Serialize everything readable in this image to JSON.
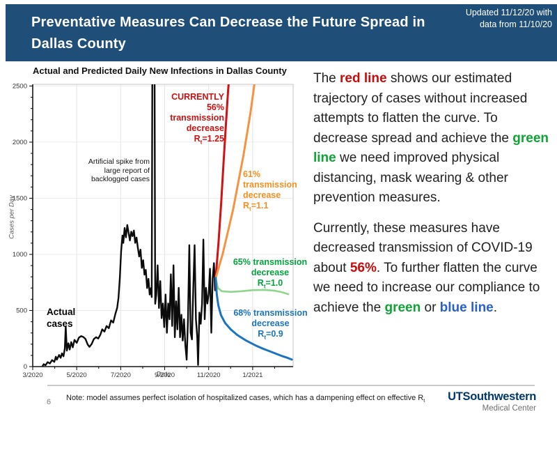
{
  "header": {
    "title": "Preventative Measures Can Decrease the Future Spread in Dallas County",
    "updated_line1": "Updated 11/12/20 with",
    "updated_line2": "data from 11/10/20",
    "bg_color": "#1F4E79"
  },
  "side_text": {
    "paragraph1_runs": [
      {
        "t": "The "
      },
      {
        "t": "red line",
        "c": "red"
      },
      {
        "t": " shows our estimated trajectory of cases without increased attempts to flatten the curve. To decrease spread and achieve the "
      },
      {
        "t": "green line",
        "c": "green"
      },
      {
        "t": " we need improved physical distancing, mask wearing & other prevention measures."
      }
    ],
    "paragraph2_runs": [
      {
        "t": "Currently, these measures have decreased transmission of COVID-19 about "
      },
      {
        "t": "56%",
        "c": "red"
      },
      {
        "t": ". To further flatten the curve we need to increase our compliance to achieve the "
      },
      {
        "t": "green",
        "c": "green"
      },
      {
        "t": " or "
      },
      {
        "t": "blue line",
        "c": "blue"
      },
      {
        "t": "."
      }
    ]
  },
  "footer": {
    "page_number": "6",
    "note_prefix": "Note: model assumes perfect isolation of hospitalized cases, which has a dampening effect on effective R",
    "note_sub": "t",
    "logo_line1": "UTSouthwestern",
    "logo_line2": "Medical Center"
  },
  "chart_data": {
    "type": "line",
    "title": "Actual and Predicted Daily New Infections in Dallas County",
    "xlabel": "Date",
    "ylabel": "Cases per Day",
    "x_unit": "months since 3/2020",
    "xlim": [
      0,
      11.84
    ],
    "ylim": [
      0,
      2515
    ],
    "grid": true,
    "x_ticks": [
      {
        "v": 0,
        "label": "3/2020"
      },
      {
        "v": 2,
        "label": "5/2020"
      },
      {
        "v": 4,
        "label": "7/2020"
      },
      {
        "v": 6,
        "label": "9/2020"
      },
      {
        "v": 8,
        "label": "11/2020"
      },
      {
        "v": 10,
        "label": "1/2021"
      }
    ],
    "y_ticks": [
      0,
      500,
      1000,
      1500,
      2000,
      2500
    ],
    "y_minor_step": 100,
    "x_minor_step": 1,
    "series": [
      {
        "name": "Actual cases",
        "color": "#0b0b0b",
        "width": 2.4,
        "points": [
          [
            0.45,
            5
          ],
          [
            0.5,
            22
          ],
          [
            0.58,
            12
          ],
          [
            0.68,
            40
          ],
          [
            0.78,
            28
          ],
          [
            0.88,
            58
          ],
          [
            0.98,
            42
          ],
          [
            1.05,
            88
          ],
          [
            1.1,
            62
          ],
          [
            1.2,
            104
          ],
          [
            1.27,
            78
          ],
          [
            1.33,
            118
          ],
          [
            1.4,
            92
          ],
          [
            1.46,
            162
          ],
          [
            1.5,
            358
          ],
          [
            1.55,
            142
          ],
          [
            1.62,
            208
          ],
          [
            1.68,
            152
          ],
          [
            1.75,
            218
          ],
          [
            1.82,
            172
          ],
          [
            1.9,
            238
          ],
          [
            2.0,
            212
          ],
          [
            2.1,
            258
          ],
          [
            2.2,
            272
          ],
          [
            2.3,
            264
          ],
          [
            2.4,
            246
          ],
          [
            2.5,
            196
          ],
          [
            2.58,
            176
          ],
          [
            2.68,
            202
          ],
          [
            2.78,
            246
          ],
          [
            2.88,
            262
          ],
          [
            2.98,
            250
          ],
          [
            3.08,
            286
          ],
          [
            3.16,
            332
          ],
          [
            3.26,
            312
          ],
          [
            3.36,
            362
          ],
          [
            3.46,
            342
          ],
          [
            3.56,
            412
          ],
          [
            3.66,
            392
          ],
          [
            3.76,
            472
          ],
          [
            3.84,
            524
          ],
          [
            3.9,
            614
          ],
          [
            3.96,
            788
          ],
          [
            4.02,
            1030
          ],
          [
            4.08,
            1168
          ],
          [
            4.12,
            1102
          ],
          [
            4.18,
            1235
          ],
          [
            4.24,
            1152
          ],
          [
            4.3,
            1262
          ],
          [
            4.36,
            1192
          ],
          [
            4.42,
            1124
          ],
          [
            4.48,
            1202
          ],
          [
            4.54,
            1162
          ],
          [
            4.6,
            1212
          ],
          [
            4.66,
            1102
          ],
          [
            4.72,
            1150
          ],
          [
            4.78,
            1058
          ],
          [
            4.84,
            982
          ],
          [
            4.9,
            1042
          ],
          [
            4.96,
            880
          ],
          [
            5.02,
            948
          ],
          [
            5.08,
            820
          ],
          [
            5.14,
            862
          ],
          [
            5.2,
            700
          ],
          [
            5.26,
            782
          ],
          [
            5.32,
            642
          ],
          [
            5.38,
            700
          ],
          [
            5.41,
            620
          ],
          [
            5.44,
            2650
          ],
          [
            5.54,
            2650
          ],
          [
            5.57,
            560
          ],
          [
            5.62,
            642
          ],
          [
            5.68,
            902
          ],
          [
            5.74,
            522
          ],
          [
            5.8,
            762
          ],
          [
            5.86,
            432
          ],
          [
            5.92,
            562
          ],
          [
            5.98,
            352
          ],
          [
            6.04,
            642
          ],
          [
            6.1,
            302
          ],
          [
            6.16,
            562
          ],
          [
            6.22,
            422
          ],
          [
            6.28,
            822
          ],
          [
            6.34,
            362
          ],
          [
            6.4,
            902
          ],
          [
            6.46,
            262
          ],
          [
            6.52,
            582
          ],
          [
            6.58,
            332
          ],
          [
            6.64,
            702
          ],
          [
            6.7,
            262
          ],
          [
            6.76,
            462
          ],
          [
            6.82,
            232
          ],
          [
            6.88,
            422
          ],
          [
            6.94,
            192
          ],
          [
            7.0,
            62
          ],
          [
            7.06,
            422
          ],
          [
            7.12,
            1082
          ],
          [
            7.18,
            302
          ],
          [
            7.24,
            242
          ],
          [
            7.3,
            702
          ],
          [
            7.36,
            1082
          ],
          [
            7.42,
            422
          ],
          [
            7.48,
            262
          ],
          [
            7.52,
            15
          ],
          [
            7.58,
            482
          ],
          [
            7.64,
            382
          ],
          [
            7.7,
            562
          ],
          [
            7.76,
            1132
          ],
          [
            7.82,
            422
          ],
          [
            7.88,
            702
          ],
          [
            7.94,
            562
          ],
          [
            8.0,
            642
          ],
          [
            8.06,
            872
          ],
          [
            8.12,
            302
          ],
          [
            8.18,
            782
          ],
          [
            8.24,
            922
          ],
          [
            8.29,
            680
          ],
          [
            8.32,
            790
          ]
        ]
      },
      {
        "name": "56% transmission decrease Rt=1.25",
        "color": "#D01215",
        "width": 3,
        "points": [
          [
            8.32,
            790
          ],
          [
            8.45,
            1110
          ],
          [
            8.57,
            1460
          ],
          [
            8.68,
            1830
          ],
          [
            8.78,
            2140
          ],
          [
            8.88,
            2450
          ],
          [
            8.95,
            2620
          ]
        ]
      },
      {
        "name": "61% transmission decrease Rt=1.1",
        "color": "#F79240",
        "width": 3,
        "points": [
          [
            8.32,
            790
          ],
          [
            8.64,
            1005
          ],
          [
            9.11,
            1400
          ],
          [
            9.59,
            1890
          ],
          [
            9.9,
            2260
          ],
          [
            10.14,
            2600
          ]
        ]
      },
      {
        "name": "65% transmission decrease Rt=1.0",
        "color": "#8FD58C",
        "width": 2.6,
        "points": [
          [
            8.32,
            790
          ],
          [
            8.42,
            700
          ],
          [
            8.6,
            672
          ],
          [
            9.0,
            666
          ],
          [
            9.5,
            672
          ],
          [
            10.0,
            681
          ],
          [
            10.5,
            684
          ],
          [
            11.0,
            676
          ],
          [
            11.35,
            662
          ],
          [
            11.62,
            645
          ]
        ]
      },
      {
        "name": "68% transmission decrease Rt=0.9",
        "color": "#1B74BE",
        "width": 3,
        "points": [
          [
            8.32,
            790
          ],
          [
            8.37,
            640
          ],
          [
            8.44,
            545
          ],
          [
            8.56,
            458
          ],
          [
            8.75,
            388
          ],
          [
            9.0,
            332
          ],
          [
            9.3,
            282
          ],
          [
            9.7,
            232
          ],
          [
            10.1,
            192
          ],
          [
            10.5,
            157
          ],
          [
            10.9,
            127
          ],
          [
            11.3,
            97
          ],
          [
            11.6,
            77
          ],
          [
            11.78,
            63
          ]
        ]
      }
    ],
    "annotations": {
      "spike_note": {
        "lines": [
          "Artificial spike from",
          "large report of",
          "backlogged cases"
        ]
      },
      "actual": {
        "lines": [
          "Actual",
          "cases"
        ]
      },
      "currently": {
        "lines": [
          "CURRENTLY",
          "56%",
          "transmission",
          "decrease"
        ],
        "rt": {
          "base": "R",
          "sub": "t",
          "eq": "=1.25"
        }
      },
      "t61": {
        "lines": [
          "61%",
          "transmission",
          "decrease"
        ],
        "rt": {
          "base": "R",
          "sub": "t",
          "eq": "=1.1"
        }
      },
      "t65": {
        "lines": [
          "65% transmission",
          "decrease"
        ],
        "rt": {
          "base": "R",
          "sub": "t",
          "eq": "=1.0"
        }
      },
      "t68": {
        "lines": [
          "68% transmission",
          "decrease"
        ],
        "rt": {
          "base": "R",
          "sub": "t",
          "eq": "=0.9"
        }
      }
    }
  }
}
